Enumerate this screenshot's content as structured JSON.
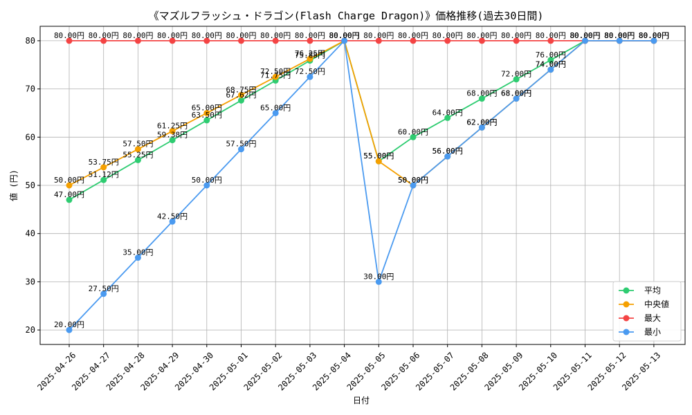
{
  "chart_data": {
    "type": "line",
    "title": "《マズルフラッシュ・ドラゴン(Flash Charge Dragon)》価格推移(過去30日間)",
    "xlabel": "日付",
    "ylabel": "値 (円)",
    "ylim": [
      17,
      83
    ],
    "yticks": [
      20,
      30,
      40,
      50,
      60,
      70,
      80
    ],
    "grid": true,
    "legend_position": "lower-right",
    "label_suffix": "円",
    "categories": [
      "2025-04-26",
      "2025-04-27",
      "2025-04-28",
      "2025-04-29",
      "2025-04-30",
      "2025-05-01",
      "2025-05-02",
      "2025-05-03",
      "2025-05-04",
      "2025-05-05",
      "2025-05-06",
      "2025-05-07",
      "2025-05-08",
      "2025-05-09",
      "2025-05-10",
      "2025-05-11",
      "2025-05-12",
      "2025-05-13"
    ],
    "series": [
      {
        "name": "平均",
        "color": "#2ecc71",
        "values": [
          47.0,
          51.12,
          55.25,
          59.38,
          63.5,
          67.62,
          71.75,
          75.88,
          80.0,
          55.0,
          60.0,
          64.0,
          68.0,
          72.0,
          76.0,
          80.0,
          80.0,
          80.0
        ]
      },
      {
        "name": "中央値",
        "color": "#f5a000",
        "values": [
          50.0,
          53.75,
          57.5,
          61.25,
          65.0,
          68.75,
          72.5,
          76.25,
          80.0,
          55.0,
          50.0,
          56.0,
          62.0,
          68.0,
          74.0,
          80.0,
          80.0,
          80.0
        ]
      },
      {
        "name": "最大",
        "color": "#f44444",
        "values": [
          80.0,
          80.0,
          80.0,
          80.0,
          80.0,
          80.0,
          80.0,
          80.0,
          80.0,
          80.0,
          80.0,
          80.0,
          80.0,
          80.0,
          80.0,
          80.0,
          80.0,
          80.0
        ]
      },
      {
        "name": "最小",
        "color": "#4a9af0",
        "values": [
          20.0,
          27.5,
          35.0,
          42.5,
          50.0,
          57.5,
          65.0,
          72.5,
          80.0,
          30.0,
          50.0,
          56.0,
          62.0,
          68.0,
          74.0,
          80.0,
          80.0,
          80.0
        ]
      }
    ]
  }
}
